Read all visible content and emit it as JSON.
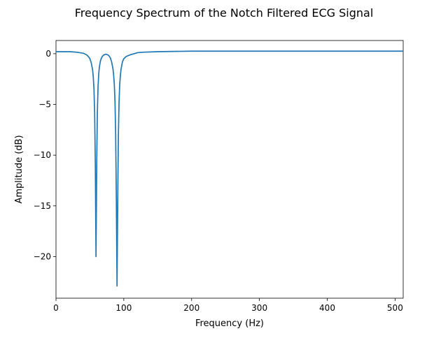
{
  "chart_data": {
    "type": "line",
    "title": "Frequency Spectrum of the Notch Filtered ECG Signal",
    "xlabel": "Frequency (Hz)",
    "ylabel": "Amplitude (dB)",
    "xlim": [
      0,
      512
    ],
    "ylim": [
      -24.1,
      1.3
    ],
    "x_ticks": [
      0,
      100,
      200,
      300,
      400,
      500
    ],
    "x_tick_labels": [
      "0",
      "100",
      "200",
      "300",
      "400",
      "500"
    ],
    "y_ticks": [
      0,
      -5,
      -10,
      -15,
      -20
    ],
    "y_tick_labels": [
      "0",
      "−5",
      "−10",
      "−15",
      "−20"
    ],
    "grid": false,
    "legend": "none",
    "series": [
      {
        "color": "#1f77b4",
        "x": [
          0,
          20,
          30,
          40,
          45,
          48,
          50,
          52,
          54,
          55,
          56,
          57,
          58,
          59,
          60,
          61,
          62,
          63,
          64,
          65,
          66,
          68,
          70,
          73,
          76,
          78,
          80,
          82,
          84,
          85,
          86,
          87,
          88,
          89,
          90,
          91,
          92,
          93,
          94,
          95,
          96,
          98,
          100,
          103,
          106,
          110,
          115,
          120,
          130,
          150,
          200,
          300,
          400,
          512
        ],
        "y": [
          0.2,
          0.2,
          0.15,
          0.05,
          -0.1,
          -0.3,
          -0.5,
          -0.9,
          -1.6,
          -2.3,
          -3.5,
          -5.8,
          -11.0,
          -20.0,
          -11.0,
          -5.8,
          -3.3,
          -2.0,
          -1.3,
          -0.9,
          -0.6,
          -0.3,
          -0.15,
          -0.05,
          -0.1,
          -0.2,
          -0.4,
          -0.8,
          -1.5,
          -2.1,
          -3.0,
          -4.7,
          -8.0,
          -14.5,
          -22.9,
          -14.5,
          -8.0,
          -4.7,
          -3.0,
          -2.1,
          -1.5,
          -0.8,
          -0.5,
          -0.3,
          -0.2,
          -0.1,
          0.0,
          0.1,
          0.15,
          0.2,
          0.25,
          0.25,
          0.25,
          0.25
        ]
      }
    ]
  }
}
